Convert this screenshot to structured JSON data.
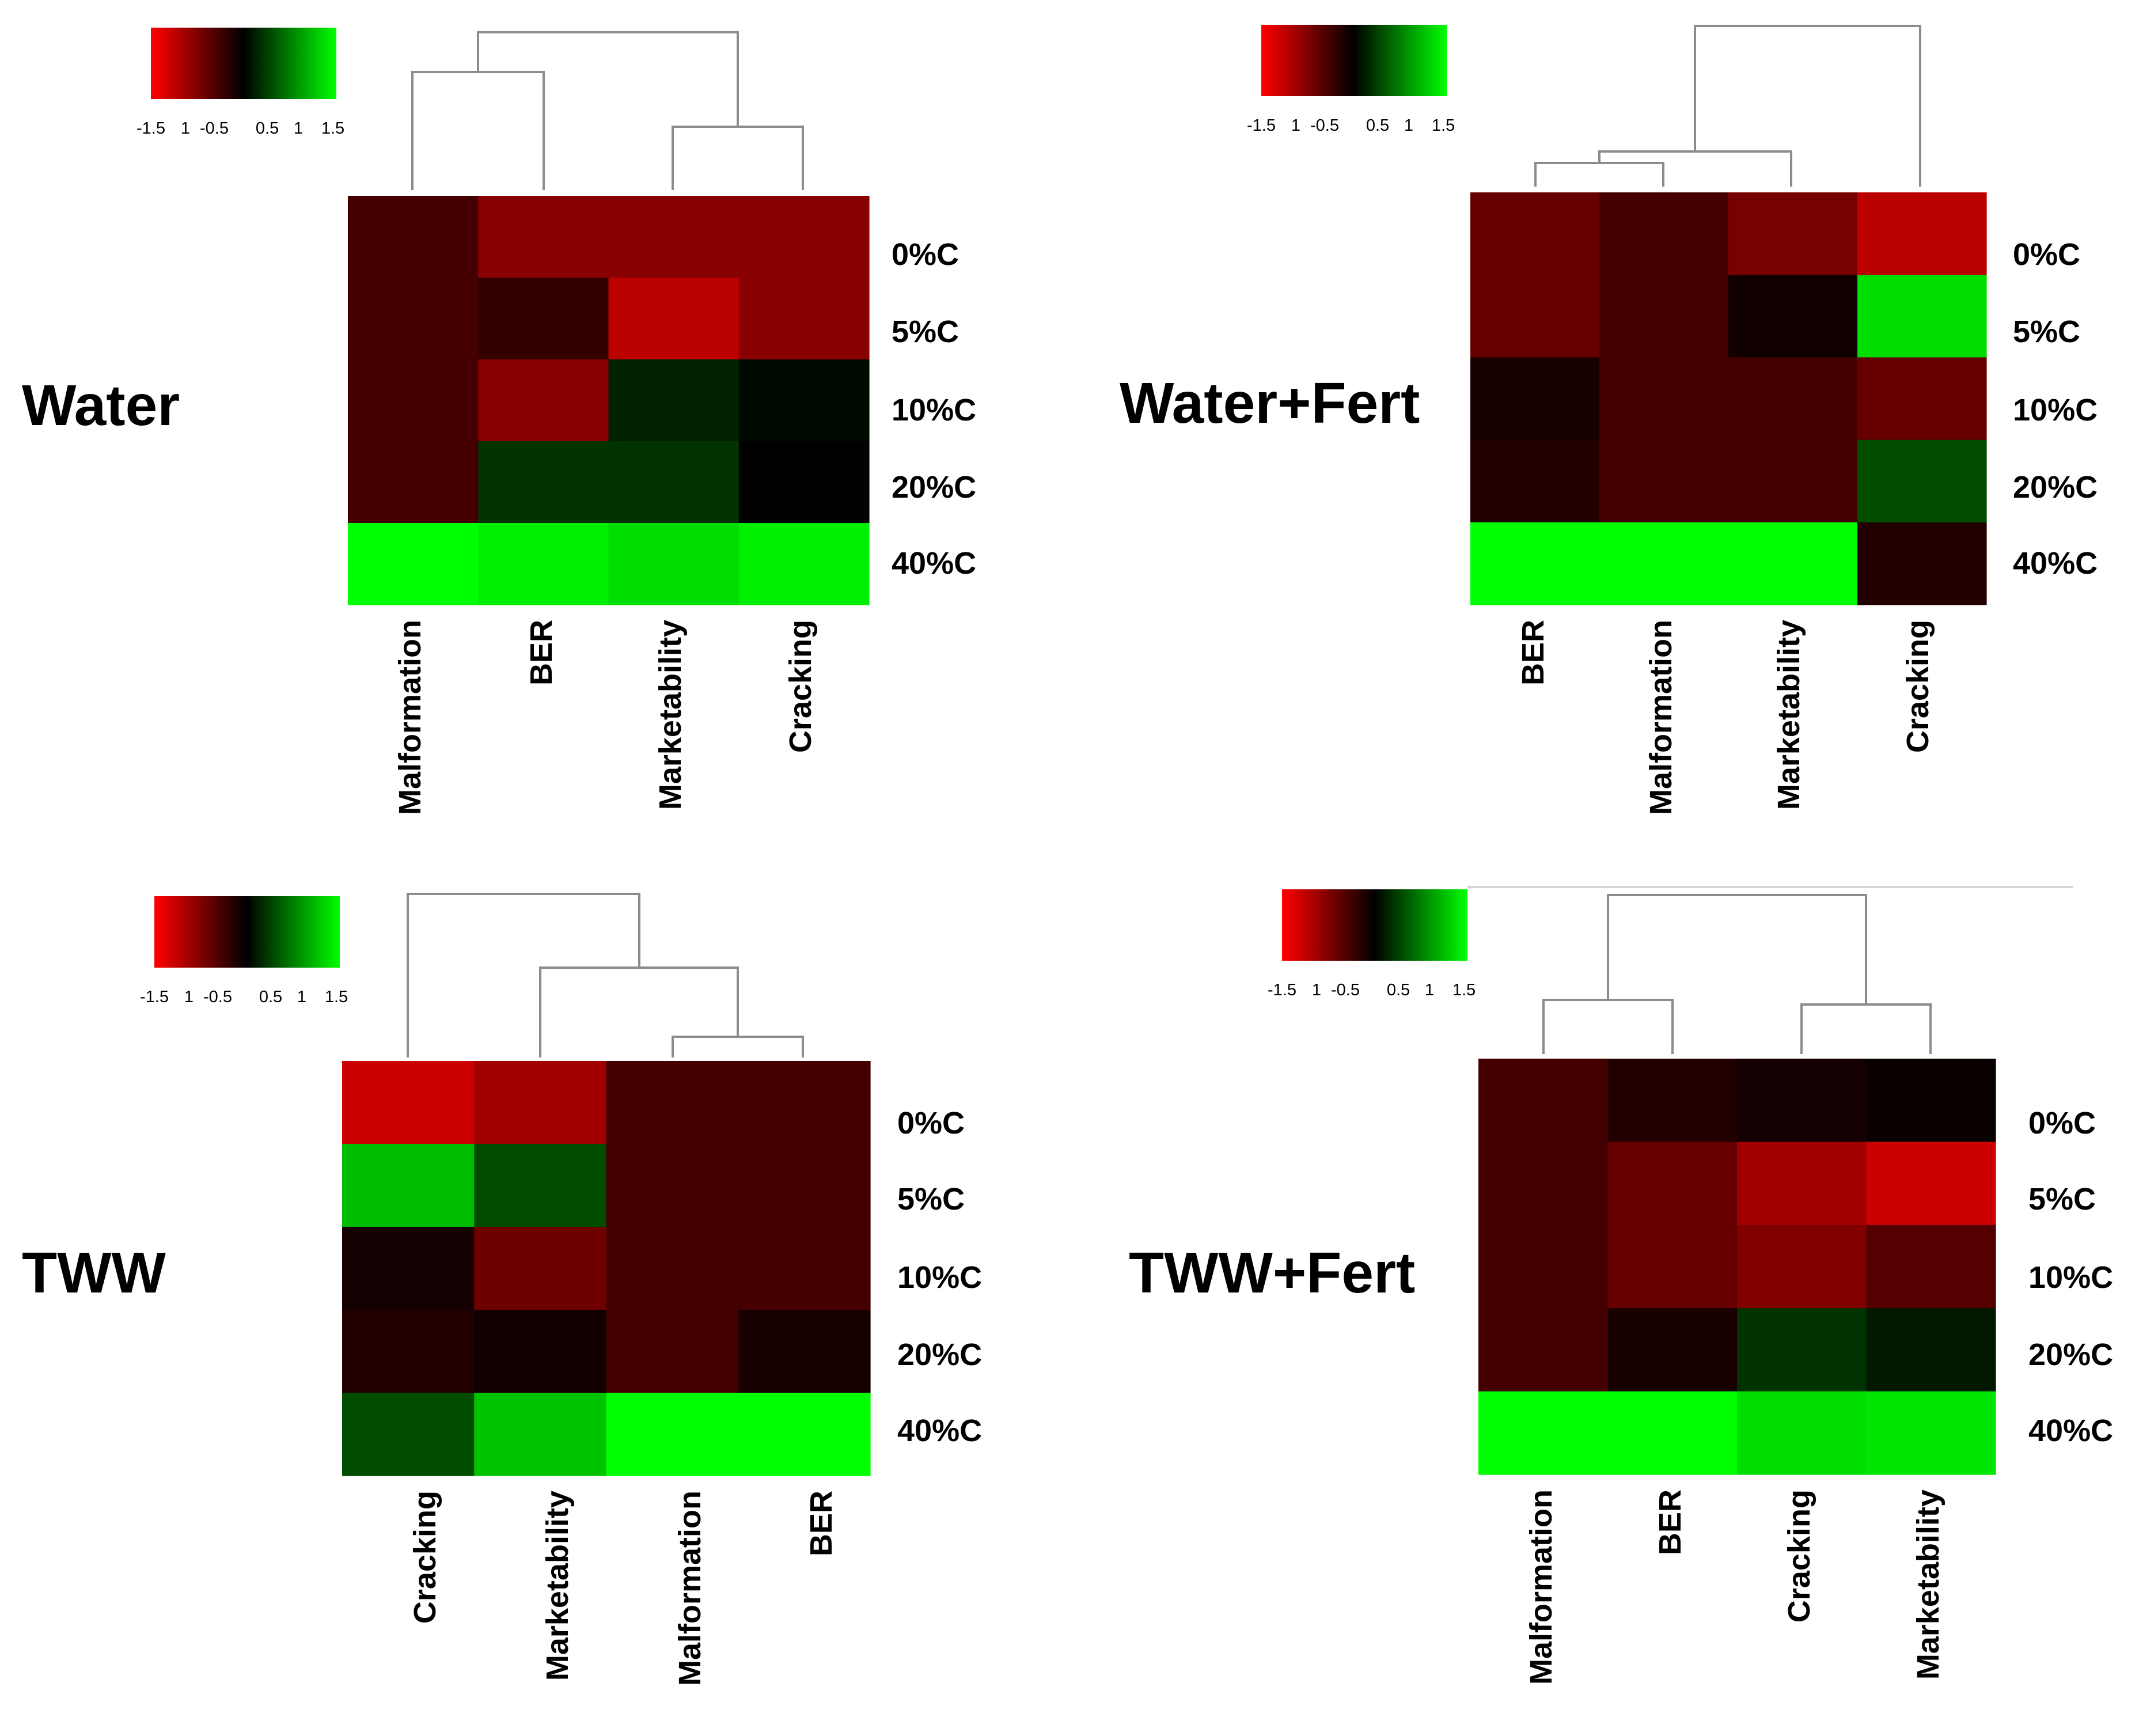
{
  "colors": {
    "low": "#ff0000",
    "mid": "#000000",
    "high": "#00ff00"
  },
  "chart_data": [
    {
      "type": "heatmap",
      "title": "Water",
      "rows": [
        "0%C",
        "5%C",
        "10%C",
        "20%C",
        "40%C"
      ],
      "columns": [
        "Malformation",
        "BER",
        "Marketability",
        "Cracking"
      ],
      "values": [
        [
          -0.4,
          -0.8,
          -0.8,
          -0.8
        ],
        [
          -0.4,
          -0.3,
          -1.1,
          -0.8
        ],
        [
          -0.4,
          -0.8,
          0.2,
          0.05
        ],
        [
          -0.4,
          0.3,
          0.3,
          0.0
        ],
        [
          1.5,
          1.4,
          1.3,
          1.4
        ]
      ],
      "color_scale": {
        "ticks": [
          "-1.5",
          "1",
          "-0.5",
          "0.5",
          "1",
          "1.5"
        ],
        "range": [
          -1.5,
          1.5
        ]
      }
    },
    {
      "type": "heatmap",
      "title": "Water+Fert",
      "rows": [
        "0%C",
        "5%C",
        "10%C",
        "20%C",
        "40%C"
      ],
      "columns": [
        "BER",
        "Malformation",
        "Marketability",
        "Cracking"
      ],
      "values": [
        [
          -0.6,
          -0.4,
          -0.7,
          -1.1
        ],
        [
          -0.6,
          -0.4,
          -0.1,
          1.3
        ],
        [
          -0.15,
          -0.4,
          -0.4,
          -0.6
        ],
        [
          -0.2,
          -0.4,
          -0.4,
          0.45
        ],
        [
          1.5,
          1.5,
          1.5,
          -0.2
        ]
      ],
      "color_scale": {
        "ticks": [
          "-1.5",
          "1",
          "-0.5",
          "0.5",
          "1",
          "1.5"
        ],
        "range": [
          -1.5,
          1.5
        ]
      }
    },
    {
      "type": "heatmap",
      "title": "TWW",
      "rows": [
        "0%C",
        "5%C",
        "10%C",
        "20%C",
        "40%C"
      ],
      "columns": [
        "Cracking",
        "Marketability",
        "Malformation",
        "BER"
      ],
      "values": [
        [
          -1.2,
          -0.95,
          -0.4,
          -0.4
        ],
        [
          1.1,
          0.45,
          -0.4,
          -0.4
        ],
        [
          -0.12,
          -0.65,
          -0.4,
          -0.4
        ],
        [
          -0.2,
          -0.1,
          -0.4,
          -0.15
        ],
        [
          0.45,
          1.15,
          1.5,
          1.5
        ]
      ],
      "color_scale": {
        "ticks": [
          "-1.5",
          "1",
          "-0.5",
          "0.5",
          "1",
          "1.5"
        ],
        "range": [
          -1.5,
          1.5
        ]
      }
    },
    {
      "type": "heatmap",
      "title": "TWW+Fert",
      "rows": [
        "0%C",
        "5%C",
        "10%C",
        "20%C",
        "40%C"
      ],
      "columns": [
        "Malformation",
        "BER",
        "Cracking",
        "Marketability"
      ],
      "values": [
        [
          -0.4,
          -0.2,
          -0.12,
          -0.05
        ],
        [
          -0.4,
          -0.6,
          -0.95,
          -1.2
        ],
        [
          -0.4,
          -0.6,
          -0.75,
          -0.5
        ],
        [
          -0.4,
          -0.15,
          0.3,
          0.15
        ],
        [
          1.5,
          1.5,
          1.3,
          1.35
        ]
      ],
      "color_scale": {
        "ticks": [
          "-1.5",
          "1",
          "-0.5",
          "0.5",
          "1",
          "1.5"
        ],
        "range": [
          -1.5,
          1.5
        ]
      }
    }
  ]
}
